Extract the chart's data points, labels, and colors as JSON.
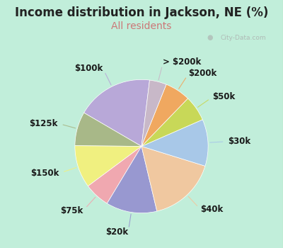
{
  "title": "Income distribution in Jackson, NE (%)",
  "subtitle": "All residents",
  "title_color": "#222222",
  "subtitle_color": "#cc7777",
  "bg_top": "#ccf5ee",
  "bg_bottom": "#b8e8c8",
  "labels": [
    "$100k",
    "$125k",
    "$150k",
    "$75k",
    "$20k",
    "$40k",
    "$30k",
    "$50k",
    "$200k",
    "> $200k"
  ],
  "values": [
    18,
    8,
    10,
    6,
    12,
    16,
    11,
    6,
    6,
    4
  ],
  "colors": [
    "#b8a8d8",
    "#a8b888",
    "#f0f080",
    "#f0a8b0",
    "#9898d0",
    "#f0c8a0",
    "#a8c8e8",
    "#c8d858",
    "#f0a860",
    "#c8b8c8"
  ],
  "label_fontsize": 8.5,
  "title_fontsize": 12,
  "subtitle_fontsize": 10,
  "startangle": 83
}
